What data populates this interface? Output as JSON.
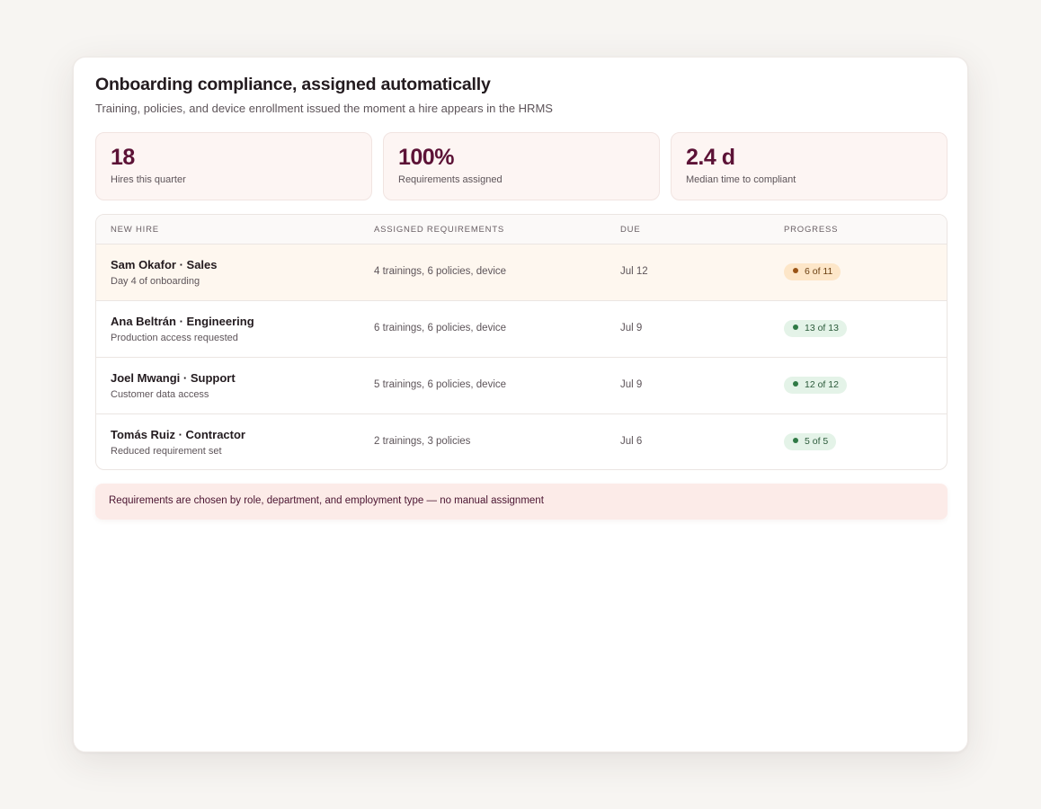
{
  "header": {
    "title": "Onboarding compliance, assigned automatically",
    "subtitle": "Training, policies, and device enrollment issued the moment a hire appears in the HRMS"
  },
  "stats": [
    {
      "value": "18",
      "label": "Hires this quarter"
    },
    {
      "value": "100%",
      "label": "Requirements assigned"
    },
    {
      "value": "2.4 d",
      "label": "Median time to compliant"
    }
  ],
  "table": {
    "columns": [
      "NEW HIRE",
      "ASSIGNED REQUIREMENTS",
      "DUE",
      "PROGRESS"
    ],
    "rows": [
      {
        "name": "Sam Okafor · Sales",
        "sub": "Day 4 of onboarding",
        "requirements": "4 trainings, 6 policies, device",
        "due": "Jul 12",
        "progress": "6 of 11",
        "status": "in-progress"
      },
      {
        "name": "Ana Beltrán · Engineering",
        "sub": "Production access requested",
        "requirements": "6 trainings, 6 policies, device",
        "due": "Jul 9",
        "progress": "13 of 13",
        "status": "complete"
      },
      {
        "name": "Joel Mwangi · Support",
        "sub": "Customer data access",
        "requirements": "5 trainings, 6 policies, device",
        "due": "Jul 9",
        "progress": "12 of 12",
        "status": "complete"
      },
      {
        "name": "Tomás Ruiz · Contractor",
        "sub": "Reduced requirement set",
        "requirements": "2 trainings, 3 policies",
        "due": "Jul 6",
        "progress": "5 of 5",
        "status": "complete"
      }
    ]
  },
  "footer_note": "Requirements are chosen by role, department, and employment type — no manual assignment",
  "colors": {
    "accent": "#5c1236",
    "stat_bg": "#fdf5f3",
    "highlight_row": "#fef7ef",
    "warn_badge": "#fde6c8",
    "ok_badge": "#e4f3e8",
    "note_bg": "#fcebe8"
  }
}
